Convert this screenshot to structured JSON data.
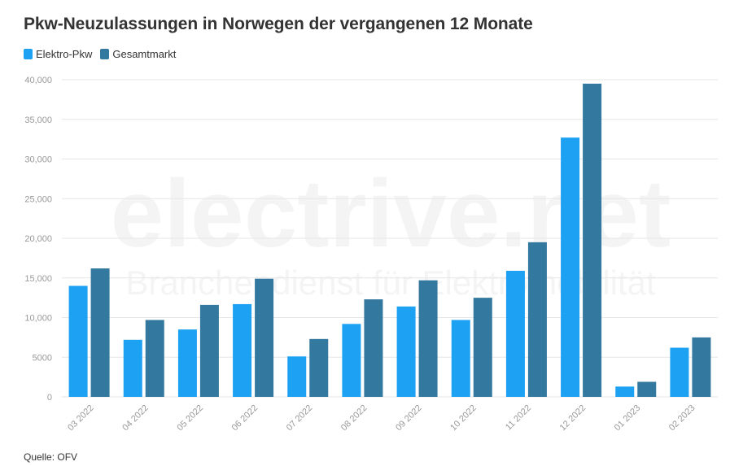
{
  "title": "Pkw-Neuzulassungen in Norwegen der vergangenen 12 Monate",
  "source": "Quelle: OFV",
  "watermark": {
    "main": "electrive.net",
    "sub": "Branchendienst für Elektromobilität"
  },
  "chart_data": {
    "type": "bar",
    "title": "Pkw-Neuzulassungen in Norwegen der vergangenen 12 Monate",
    "xlabel": "",
    "ylabel": "",
    "ylim": [
      0,
      40000
    ],
    "yticks": [
      0,
      5000,
      10000,
      15000,
      20000,
      25000,
      30000,
      35000,
      40000
    ],
    "ytick_labels": [
      "0",
      "5000",
      "10,000",
      "15,000",
      "20,000",
      "25,000",
      "30,000",
      "35,000",
      "40,000"
    ],
    "grid": true,
    "legend_position": "top-left",
    "categories": [
      "03 2022",
      "04 2022",
      "05 2022",
      "06 2022",
      "07 2022",
      "08 2022",
      "09 2022",
      "10 2022",
      "11 2022",
      "12 2022",
      "01 2023",
      "02 2023"
    ],
    "series": [
      {
        "name": "Elektro-Pkw",
        "color": "#1da1f2",
        "values": [
          14000,
          7200,
          8500,
          11700,
          5100,
          9200,
          11400,
          9700,
          15900,
          32700,
          1300,
          6200
        ]
      },
      {
        "name": "Gesamtmarkt",
        "color": "#33789e",
        "values": [
          16200,
          9700,
          11600,
          14900,
          7300,
          12300,
          14700,
          12500,
          19500,
          39500,
          1900,
          7500
        ]
      }
    ]
  }
}
